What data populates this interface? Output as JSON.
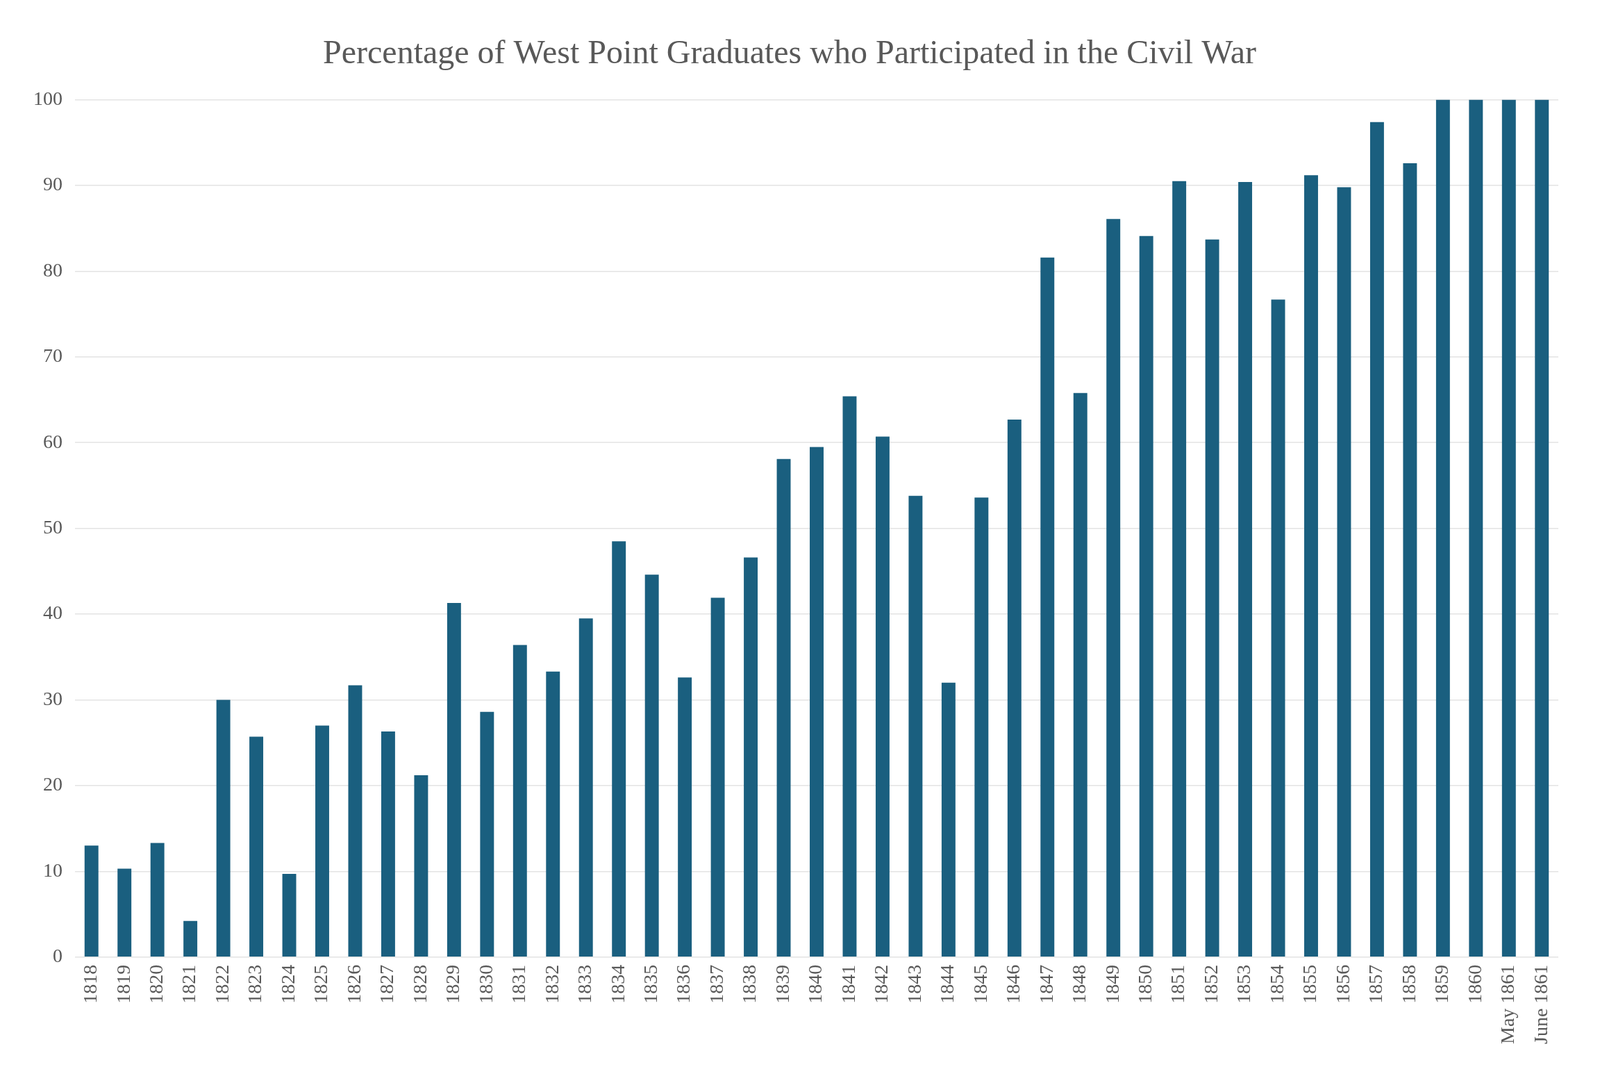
{
  "chart_data": {
    "type": "bar",
    "title": "Percentage of West Point Graduates who Participated in the Civil War",
    "categories": [
      "1818",
      "1819",
      "1820",
      "1821",
      "1822",
      "1823",
      "1824",
      "1825",
      "1826",
      "1827",
      "1828",
      "1829",
      "1830",
      "1831",
      "1832",
      "1833",
      "1834",
      "1835",
      "1836",
      "1837",
      "1838",
      "1839",
      "1840",
      "1841",
      "1842",
      "1843",
      "1844",
      "1845",
      "1846",
      "1847",
      "1848",
      "1849",
      "1850",
      "1851",
      "1852",
      "1853",
      "1854",
      "1855",
      "1856",
      "1857",
      "1858",
      "1859",
      "1860",
      "May 1861",
      "June 1861"
    ],
    "values": [
      13,
      10.3,
      13.3,
      4.2,
      30,
      25.7,
      9.7,
      27,
      31.7,
      26.3,
      21.2,
      41.3,
      28.6,
      36.4,
      33.3,
      39.5,
      48.5,
      44.6,
      32.6,
      41.9,
      46.6,
      58.1,
      59.5,
      65.4,
      60.7,
      53.8,
      32,
      53.6,
      62.7,
      81.6,
      65.8,
      86.1,
      84.1,
      90.5,
      83.7,
      90.4,
      76.7,
      91.2,
      89.8,
      97.4,
      92.6,
      100,
      100,
      100,
      100
    ],
    "color": "#1a5f7f",
    "ylim": [
      0,
      100
    ],
    "yticks": [
      0,
      10,
      20,
      30,
      40,
      50,
      60,
      70,
      80,
      90,
      100
    ],
    "grid": true
  }
}
